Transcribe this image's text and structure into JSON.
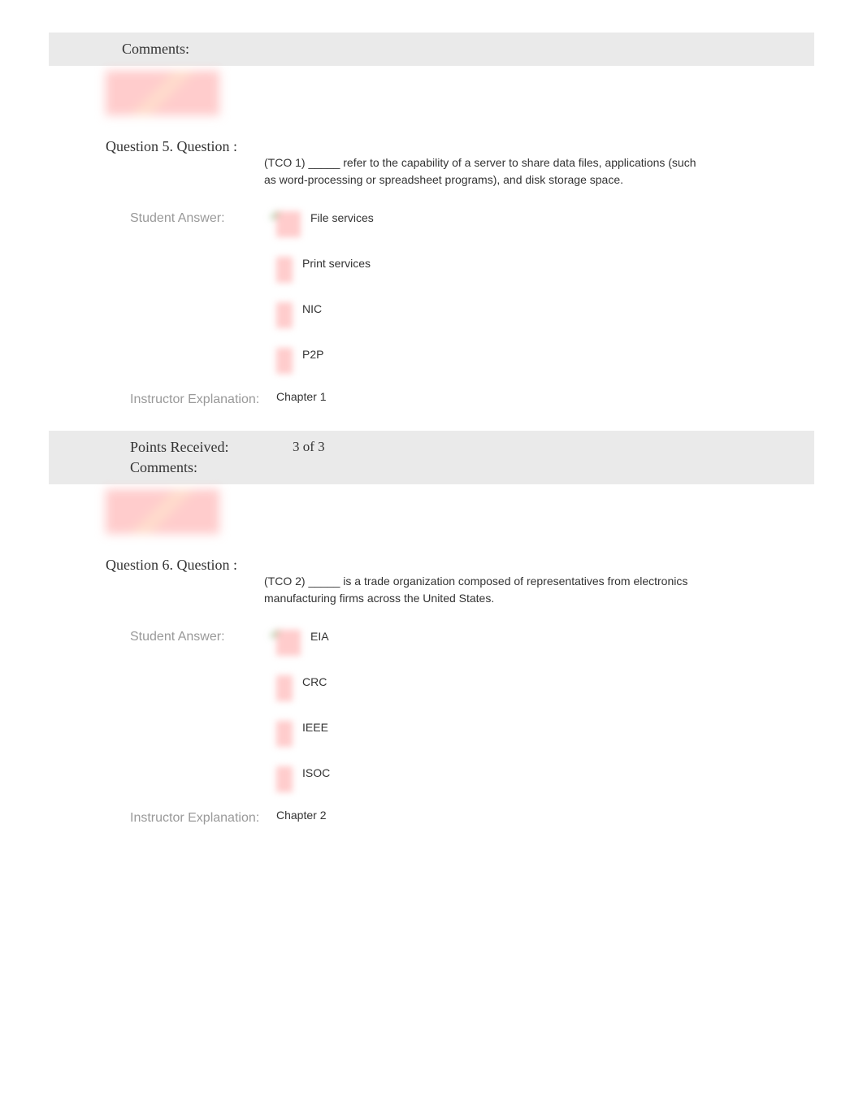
{
  "comments_label": "Comments:",
  "question5": {
    "number": "Question 5.",
    "label": "Question :",
    "text": "(TCO 1) _____ refer to the capability of a server to share data files, applications (such as word-processing or spreadsheet programs), and disk storage space.",
    "student_answer_label": "Student Answer:",
    "options": [
      "File services",
      "Print services",
      "NIC",
      "P2P"
    ],
    "instructor_label": "Instructor Explanation:",
    "instructor_text": "Chapter 1",
    "points_label": "Points Received:",
    "points_value": "3 of 3",
    "comments_label": "Comments:"
  },
  "question6": {
    "number": "Question 6.",
    "label": "Question :",
    "text": "(TCO 2) _____ is a trade organization composed of representatives from electronics manufacturing firms across the United States.",
    "student_answer_label": "Student Answer:",
    "options": [
      "EIA",
      "CRC",
      "IEEE",
      "ISOC"
    ],
    "instructor_label": "Instructor Explanation:",
    "instructor_text": "Chapter 2"
  },
  "colors": {
    "background": "#ffffff",
    "shaded_row": "#eaeaea",
    "text_primary": "#333333",
    "text_muted": "#999999",
    "blur_pink": "#ffcccc"
  }
}
